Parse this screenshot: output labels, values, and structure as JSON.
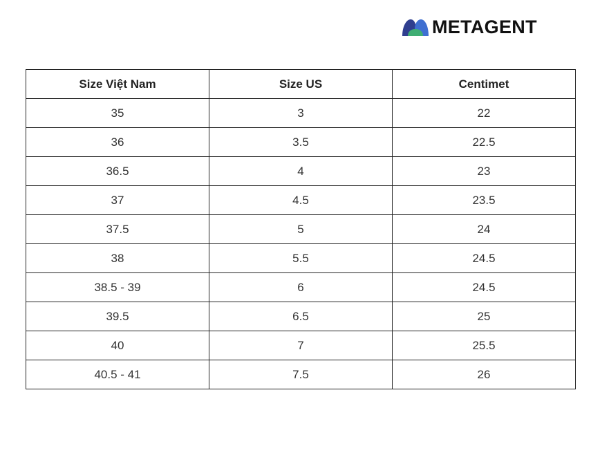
{
  "brand": {
    "name": "METAGENT",
    "icon": "metagent-logo-icon",
    "colors": {
      "dark_blue": "#2f3e8f",
      "blue": "#3f6fd1",
      "green": "#3fae73",
      "text": "#111111"
    }
  },
  "table": {
    "headers": [
      "Size Việt Nam",
      "Size US",
      "Centimet"
    ],
    "rows": [
      [
        "35",
        "3",
        "22"
      ],
      [
        "36",
        "3.5",
        "22.5"
      ],
      [
        "36.5",
        "4",
        "23"
      ],
      [
        "37",
        "4.5",
        "23.5"
      ],
      [
        "37.5",
        "5",
        "24"
      ],
      [
        "38",
        "5.5",
        "24.5"
      ],
      [
        "38.5 - 39",
        "6",
        "24.5"
      ],
      [
        "39.5",
        "6.5",
        "25"
      ],
      [
        "40",
        "7",
        "25.5"
      ],
      [
        "40.5 - 41",
        "7.5",
        "26"
      ]
    ]
  }
}
